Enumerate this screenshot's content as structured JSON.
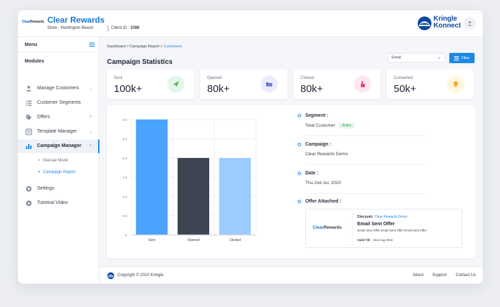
{
  "header": {
    "small_logo_a": "Clear",
    "small_logo_b": "Rewards",
    "brand_title": "Clear Rewards",
    "store": "Store : Huntington Beach",
    "client_label": "Client ID :",
    "client_id": "3386",
    "kk_line1": "Kringle",
    "kk_line2": "Konnect"
  },
  "sidebar": {
    "menu_label": "Menu",
    "modules_label": "Modules",
    "items": [
      {
        "label": "Manage Customers",
        "icon": "user-icon"
      },
      {
        "label": "Customer Segments",
        "icon": "list-icon"
      },
      {
        "label": "Offers",
        "icon": "tag-icon"
      },
      {
        "label": "Template Manager",
        "icon": "template-icon"
      },
      {
        "label": "Campaign Manager",
        "icon": "bar-chart-icon"
      },
      {
        "label": "Settings",
        "icon": "gear-icon"
      },
      {
        "label": "Tutotrial Video",
        "icon": "play-icon"
      }
    ],
    "sub_items": [
      "Manual Mode",
      "Campaign Report"
    ]
  },
  "breadcrumb": {
    "a": "Dashboard",
    "b": "Campaign Report",
    "c": "Customers",
    "sep": ">"
  },
  "page_title": "Campaign Statistics",
  "filter": {
    "select_value": "Email",
    "button_label": "Filter"
  },
  "stats": [
    {
      "label": "Sent",
      "value": "100k+",
      "color": "#4caf50",
      "bg": "#e6f6ea",
      "icon": "send-icon"
    },
    {
      "label": "Opened",
      "value": "80k+",
      "color": "#5c6bc0",
      "bg": "#ebedfa",
      "icon": "open-folder-icon"
    },
    {
      "label": "Clicked",
      "value": "80k+",
      "color": "#ec407a",
      "bg": "#fde7ef",
      "icon": "pointer-icon"
    },
    {
      "label": "Converted",
      "value": "50k+",
      "color": "#f9a825",
      "bg": "#fff6dd",
      "icon": "lightbulb-icon"
    }
  ],
  "chart_data": {
    "type": "bar",
    "categories": [
      "Sent",
      "Opened",
      "Clicked"
    ],
    "values": [
      3.0,
      2.0,
      2.0
    ],
    "bar_colors": [
      "#4aa3ff",
      "#3f4453",
      "#9ccbff"
    ],
    "ylim": [
      0,
      3.0
    ],
    "yticks": [
      "0",
      "0.5",
      "1.0",
      "1.5",
      "2.0",
      "2.5",
      "3.0"
    ],
    "grid": true,
    "title": "",
    "xlabel": "",
    "ylabel": ""
  },
  "details": {
    "segment_label": "Segment :",
    "segment_value": "Total Customer",
    "segment_badge": "Active",
    "campaign_label": "Campaign :",
    "campaign_value": "Clear Rewards Demo",
    "date_label": "Date :",
    "date_value": "Thu 2nd Jul, 2020",
    "offer_label": "Offer Attached :"
  },
  "offer": {
    "logo_a": "Clear",
    "logo_b": "Rewards",
    "discount_label": "Discount:",
    "discount_link": "Clear Rewards Demo",
    "title": "Email Sent Offer",
    "description": "Email Sent Offer Email Sent Offer Email Sent Offer",
    "valid_label": "Valid Till:",
    "valid_value": "31st Aug 2019"
  },
  "footer": {
    "copyright": "Copyright © 2020 Kringle.",
    "links": [
      "About",
      "Support",
      "Contact Us"
    ]
  }
}
